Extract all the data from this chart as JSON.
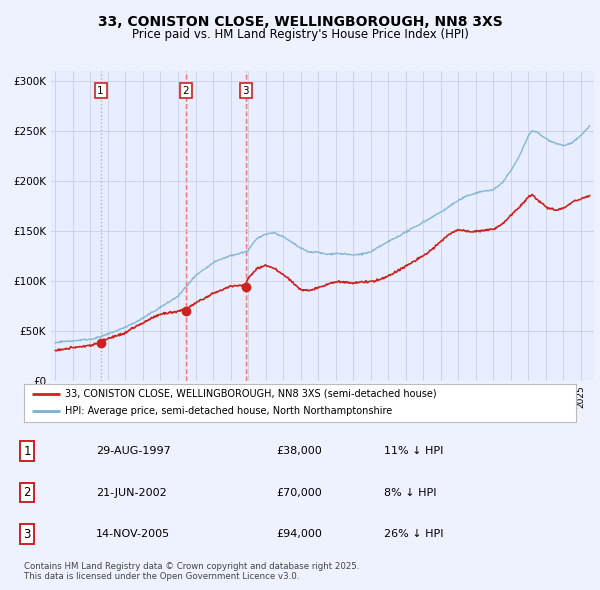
{
  "title_line1": "33, CONISTON CLOSE, WELLINGBOROUGH, NN8 3XS",
  "title_line2": "Price paid vs. HM Land Registry's House Price Index (HPI)",
  "background_color": "#eef2ff",
  "plot_bg_color": "#e8eeff",
  "sale_dates_num": [
    1997.583,
    2002.458,
    2005.875
  ],
  "sale_prices": [
    38000,
    70000,
    94000
  ],
  "sale_labels": [
    "1",
    "2",
    "3"
  ],
  "sale_line_styles": [
    "dotted",
    "dashed",
    "dashed"
  ],
  "sale_line_colors": [
    "#aaaaaa",
    "#ff6666",
    "#ff6666"
  ],
  "hpi_color": "#7ab0d4",
  "price_color": "#cc2222",
  "legend_line1": "33, CONISTON CLOSE, WELLINGBOROUGH, NN8 3XS (semi-detached house)",
  "legend_line2": "HPI: Average price, semi-detached house, North Northamptonshire",
  "table_entries": [
    {
      "label": "1",
      "date": "29-AUG-1997",
      "price": "£38,000",
      "pct": "11% ↓ HPI"
    },
    {
      "label": "2",
      "date": "21-JUN-2002",
      "price": "£70,000",
      "pct": "8% ↓ HPI"
    },
    {
      "label": "3",
      "date": "14-NOV-2005",
      "price": "£94,000",
      "pct": "26% ↓ HPI"
    }
  ],
  "footnote": "Contains HM Land Registry data © Crown copyright and database right 2025.\nThis data is licensed under the Open Government Licence v3.0.",
  "ylim": [
    0,
    310000
  ],
  "yticks": [
    0,
    50000,
    100000,
    150000,
    200000,
    250000,
    300000
  ],
  "ytick_labels": [
    "£0",
    "£50K",
    "£100K",
    "£150K",
    "£200K",
    "£250K",
    "£300K"
  ],
  "xlim": [
    1994.75,
    2025.75
  ],
  "hpi_anchors_x": [
    1995.0,
    1996.0,
    1997.0,
    1997.5,
    1998.0,
    1999.0,
    2000.0,
    2001.0,
    2002.0,
    2002.5,
    2003.0,
    2004.0,
    2005.0,
    2005.5,
    2006.0,
    2006.5,
    2007.0,
    2007.5,
    2008.0,
    2008.5,
    2009.0,
    2009.5,
    2010.0,
    2010.5,
    2011.0,
    2011.5,
    2012.0,
    2012.5,
    2013.0,
    2013.5,
    2014.0,
    2014.5,
    2015.0,
    2015.5,
    2016.0,
    2016.5,
    2017.0,
    2017.5,
    2018.0,
    2018.5,
    2019.0,
    2019.5,
    2020.0,
    2020.5,
    2021.0,
    2021.5,
    2022.0,
    2022.25,
    2022.5,
    2023.0,
    2023.5,
    2024.0,
    2024.5,
    2025.0,
    2025.5
  ],
  "hpi_anchors_y": [
    38000,
    40000,
    42000,
    44000,
    47000,
    54000,
    63000,
    74000,
    85000,
    95000,
    105000,
    118000,
    125000,
    127000,
    130000,
    142000,
    147000,
    148000,
    144000,
    138000,
    132000,
    128000,
    128000,
    126000,
    127000,
    126000,
    125000,
    126000,
    128000,
    133000,
    138000,
    143000,
    148000,
    153000,
    158000,
    163000,
    168000,
    174000,
    180000,
    185000,
    188000,
    190000,
    191000,
    198000,
    210000,
    225000,
    245000,
    250000,
    248000,
    242000,
    238000,
    235000,
    238000,
    245000,
    255000
  ],
  "price_anchors_x": [
    1995.0,
    1996.0,
    1997.0,
    1997.5,
    1997.583,
    1998.0,
    1999.0,
    2000.0,
    2001.0,
    2002.0,
    2002.458,
    2003.0,
    2004.0,
    2005.0,
    2005.875,
    2006.0,
    2006.5,
    2007.0,
    2007.5,
    2008.0,
    2008.5,
    2009.0,
    2009.5,
    2010.0,
    2010.5,
    2011.0,
    2011.5,
    2012.0,
    2012.5,
    2013.0,
    2013.5,
    2014.0,
    2014.5,
    2015.0,
    2015.5,
    2016.0,
    2016.5,
    2017.0,
    2017.5,
    2018.0,
    2018.5,
    2019.0,
    2019.5,
    2020.0,
    2020.5,
    2021.0,
    2021.5,
    2022.0,
    2022.25,
    2022.5,
    2023.0,
    2023.5,
    2024.0,
    2024.5,
    2025.0,
    2025.5
  ],
  "price_anchors_y": [
    30000,
    32000,
    34000,
    36000,
    38000,
    40000,
    46000,
    55000,
    64000,
    67000,
    70000,
    76000,
    86000,
    93000,
    94000,
    100000,
    110000,
    113000,
    110000,
    104000,
    96000,
    88000,
    87000,
    90000,
    93000,
    95000,
    95000,
    95000,
    96000,
    97000,
    99000,
    103000,
    108000,
    113000,
    118000,
    123000,
    130000,
    138000,
    145000,
    150000,
    148000,
    148000,
    149000,
    150000,
    155000,
    163000,
    172000,
    183000,
    185000,
    180000,
    173000,
    170000,
    172000,
    178000,
    182000,
    185000
  ]
}
